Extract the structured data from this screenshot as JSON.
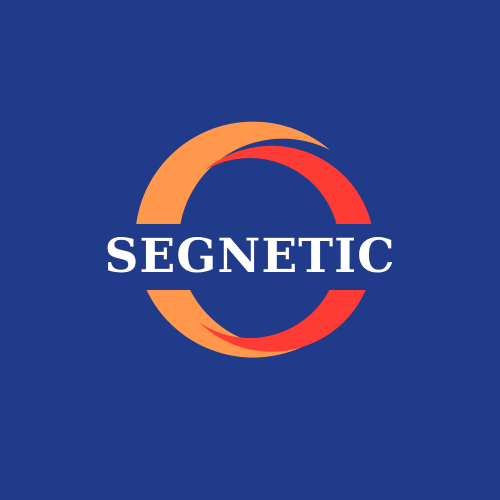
{
  "logo": {
    "brand_name": "SEGNETIC",
    "colors": {
      "background": "#1F3B8A",
      "outer_ring": "#FF974C",
      "inner_ring": "#FF3B35",
      "text": "#FFFFFF"
    }
  }
}
